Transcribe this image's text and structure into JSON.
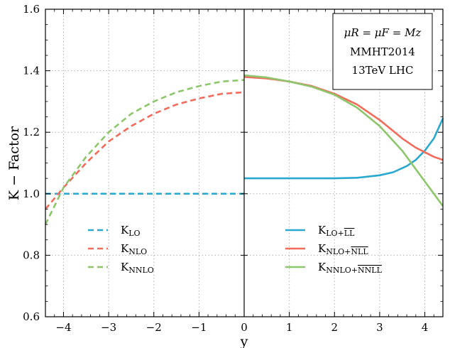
{
  "chart_data": {
    "type": "line",
    "xlabel": "y",
    "ylabel": "K − Factor",
    "xlim": [
      -4.4,
      4.4
    ],
    "ylim": [
      0.6,
      1.6
    ],
    "grid": true,
    "x_ticks": [
      -4,
      -3,
      -2,
      -1,
      0,
      1,
      2,
      3,
      4
    ],
    "x_tick_labels": [
      "−4",
      "−3",
      "−2",
      "−1",
      "0",
      "1",
      "2",
      "3",
      "4"
    ],
    "y_ticks": [
      0.6,
      0.8,
      1.0,
      1.2,
      1.4,
      1.6
    ],
    "y_tick_labels": [
      "0.6",
      "0.8",
      "1.0",
      "1.2",
      "1.4",
      "1.6"
    ],
    "annotation": {
      "line1": "μR = μF = Mz",
      "line2": "MMHT2014",
      "line3": "13TeV LHC"
    },
    "colors": {
      "lo": "#29a8d0",
      "nlo": "#f26b5b",
      "nnlo": "#8dc66b"
    },
    "series": [
      {
        "name": "KLO",
        "legend_main": "K",
        "legend_sub": "LO",
        "legend_over": "",
        "panel": "left",
        "style": "dashed",
        "color": "#29a8d0",
        "x": [
          -4.4,
          0
        ],
        "y": [
          1.0,
          1.0
        ]
      },
      {
        "name": "KNLO",
        "legend_main": "K",
        "legend_sub": "NLO",
        "legend_over": "",
        "panel": "left",
        "style": "dashed",
        "color": "#f26b5b",
        "x": [
          -4.4,
          -4.0,
          -3.5,
          -3.0,
          -2.5,
          -2.0,
          -1.5,
          -1.0,
          -0.5,
          0.0
        ],
        "y": [
          0.95,
          1.02,
          1.1,
          1.17,
          1.22,
          1.26,
          1.29,
          1.31,
          1.325,
          1.33
        ]
      },
      {
        "name": "KNNLO",
        "legend_main": "K",
        "legend_sub": "NNLO",
        "legend_over": "",
        "panel": "left",
        "style": "dashed",
        "color": "#8dc66b",
        "x": [
          -4.4,
          -4.0,
          -3.5,
          -3.0,
          -2.5,
          -2.0,
          -1.5,
          -1.0,
          -0.5,
          0.0
        ],
        "y": [
          0.9,
          1.02,
          1.12,
          1.2,
          1.26,
          1.3,
          1.33,
          1.35,
          1.365,
          1.37
        ]
      },
      {
        "name": "KLO+LL",
        "legend_main": "K",
        "legend_sub": "LO+",
        "legend_over": "LL",
        "panel": "right",
        "style": "solid",
        "color": "#29a8d0",
        "x": [
          0.0,
          0.5,
          1.0,
          1.5,
          2.0,
          2.5,
          3.0,
          3.3,
          3.6,
          3.8,
          4.0,
          4.2,
          4.4
        ],
        "y": [
          1.05,
          1.05,
          1.05,
          1.05,
          1.05,
          1.052,
          1.06,
          1.07,
          1.09,
          1.11,
          1.14,
          1.18,
          1.245
        ]
      },
      {
        "name": "KNLO+NLL",
        "legend_main": "K",
        "legend_sub": "NLO+",
        "legend_over": "NLL",
        "panel": "right",
        "style": "solid",
        "color": "#f26b5b",
        "x": [
          0.0,
          0.5,
          1.0,
          1.5,
          2.0,
          2.5,
          3.0,
          3.5,
          3.8,
          4.0,
          4.2,
          4.4
        ],
        "y": [
          1.38,
          1.375,
          1.365,
          1.35,
          1.325,
          1.29,
          1.24,
          1.18,
          1.15,
          1.135,
          1.12,
          1.11
        ]
      },
      {
        "name": "KNNLO+NNLL",
        "legend_main": "K",
        "legend_sub": "NNLO+",
        "legend_over": "NNLL",
        "panel": "right",
        "style": "solid",
        "color": "#8dc66b",
        "x": [
          0.0,
          0.5,
          1.0,
          1.5,
          2.0,
          2.5,
          3.0,
          3.5,
          3.8,
          4.0,
          4.2,
          4.4
        ],
        "y": [
          1.385,
          1.378,
          1.365,
          1.348,
          1.322,
          1.28,
          1.22,
          1.14,
          1.08,
          1.04,
          1.0,
          0.96
        ]
      }
    ]
  }
}
